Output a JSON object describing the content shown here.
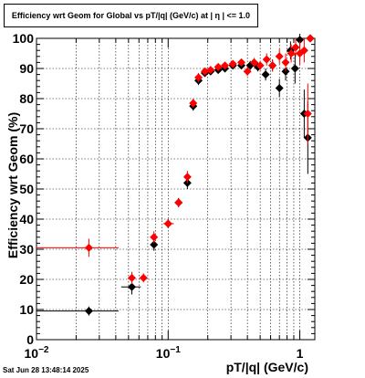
{
  "title": "Efficiency wrt Geom for Global vs pT/|q| (GeV/c) at |  η  | <= 1.0",
  "timestamp": "Sat Jun 28 13:48:14 2025",
  "chart_data": {
    "type": "scatter",
    "title": "Efficiency wrt Geom for Global vs pT/|q| (GeV/c) at |  η  | <= 1.0",
    "xlabel": "pT/|q| (GeV/c)",
    "ylabel": "Efficiency wrt Geom (%)",
    "x_scale": "log",
    "xlim": [
      0.01,
      1.3
    ],
    "ylim": [
      0,
      100
    ],
    "grid": true,
    "x_ticks": [
      {
        "value": 0.01,
        "mantissa": "10",
        "exp": "−2"
      },
      {
        "value": 0.1,
        "mantissa": "10",
        "exp": "−1"
      },
      {
        "value": 1,
        "mantissa": "1",
        "exp": ""
      }
    ],
    "y_ticks": [
      "0",
      "10",
      "20",
      "30",
      "40",
      "50",
      "60",
      "70",
      "80",
      "90",
      "100"
    ],
    "series": [
      {
        "color": "#000000",
        "marker": "diamond",
        "points": [
          {
            "x": 0.025,
            "y": 9.5,
            "xlo": 0.01,
            "xhi": 0.042,
            "err": 1.5
          },
          {
            "x": 0.053,
            "y": 17.5,
            "xlo": 0.044,
            "xhi": 0.062,
            "err": 2.5
          },
          {
            "x": 0.078,
            "y": 31.5,
            "err": 2
          },
          {
            "x": 0.1,
            "y": 38.5,
            "xlo": 0.092,
            "xhi": 0.11,
            "err": 1.5
          },
          {
            "x": 0.12,
            "y": 45.5,
            "err": 1.5
          },
          {
            "x": 0.14,
            "y": 52,
            "err": 2
          },
          {
            "x": 0.155,
            "y": 77.5,
            "err": 1.5
          },
          {
            "x": 0.17,
            "y": 86,
            "err": 1.5
          },
          {
            "x": 0.19,
            "y": 88.5,
            "err": 1
          },
          {
            "x": 0.21,
            "y": 89,
            "err": 1
          },
          {
            "x": 0.24,
            "y": 89.5,
            "err": 1
          },
          {
            "x": 0.27,
            "y": 90,
            "err": 1
          },
          {
            "x": 0.31,
            "y": 91,
            "err": 1
          },
          {
            "x": 0.36,
            "y": 91,
            "err": 1
          },
          {
            "x": 0.42,
            "y": 91,
            "err": 1.5
          },
          {
            "x": 0.48,
            "y": 90.5,
            "err": 1.5
          },
          {
            "x": 0.55,
            "y": 88,
            "err": 2
          },
          {
            "x": 0.62,
            "y": 91,
            "err": 2
          },
          {
            "x": 0.7,
            "y": 83.5,
            "err": 3
          },
          {
            "x": 0.78,
            "y": 89,
            "err": 3
          },
          {
            "x": 0.85,
            "y": 96,
            "err": 3
          },
          {
            "x": 0.92,
            "y": 90,
            "err": 5
          },
          {
            "x": 1.0,
            "y": 99.5,
            "err": 2
          },
          {
            "x": 1.08,
            "y": 75,
            "err": 8
          },
          {
            "x": 1.15,
            "y": 67,
            "err": 12
          },
          {
            "x": 1.2,
            "y": 100,
            "err": 1
          }
        ]
      },
      {
        "color": "#ff0000",
        "marker": "diamond",
        "points": [
          {
            "x": 0.025,
            "y": 30.5,
            "xlo": 0.01,
            "xhi": 0.042,
            "err": 3
          },
          {
            "x": 0.053,
            "y": 20.5,
            "err": 2
          },
          {
            "x": 0.065,
            "y": 20.5,
            "err": 1.5
          },
          {
            "x": 0.078,
            "y": 34,
            "err": 2
          },
          {
            "x": 0.1,
            "y": 38.5,
            "xlo": 0.092,
            "xhi": 0.11,
            "err": 1.5
          },
          {
            "x": 0.12,
            "y": 45.5,
            "xlo": 0.113,
            "xhi": 0.128,
            "err": 1.5
          },
          {
            "x": 0.14,
            "y": 54,
            "err": 2
          },
          {
            "x": 0.155,
            "y": 78.5,
            "err": 1.5
          },
          {
            "x": 0.17,
            "y": 87,
            "err": 1.5
          },
          {
            "x": 0.19,
            "y": 89,
            "err": 1
          },
          {
            "x": 0.21,
            "y": 89.5,
            "err": 1
          },
          {
            "x": 0.24,
            "y": 90.5,
            "err": 1
          },
          {
            "x": 0.27,
            "y": 91,
            "err": 1
          },
          {
            "x": 0.31,
            "y": 91.5,
            "err": 1
          },
          {
            "x": 0.36,
            "y": 92,
            "err": 1
          },
          {
            "x": 0.4,
            "y": 89,
            "err": 1.5
          },
          {
            "x": 0.45,
            "y": 92,
            "err": 1.5
          },
          {
            "x": 0.5,
            "y": 91,
            "err": 1.5
          },
          {
            "x": 0.56,
            "y": 93,
            "err": 2
          },
          {
            "x": 0.62,
            "y": 91,
            "err": 2
          },
          {
            "x": 0.7,
            "y": 94,
            "err": 2.5
          },
          {
            "x": 0.78,
            "y": 92,
            "err": 3
          },
          {
            "x": 0.86,
            "y": 95,
            "err": 3
          },
          {
            "x": 0.93,
            "y": 97,
            "err": 3
          },
          {
            "x": 1.0,
            "y": 95,
            "err": 4
          },
          {
            "x": 1.08,
            "y": 96,
            "err": 4
          },
          {
            "x": 1.15,
            "y": 75,
            "err": 10
          },
          {
            "x": 1.2,
            "y": 100,
            "err": 1
          }
        ]
      }
    ]
  }
}
